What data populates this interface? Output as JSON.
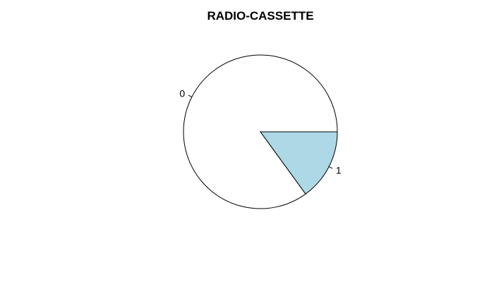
{
  "chart_data": {
    "type": "pie",
    "title": "RADIO-CASSETTE",
    "categories": [
      "0",
      "1"
    ],
    "values": [
      0.85,
      0.15
    ],
    "colors": [
      "#FFFFFF",
      "#ADD8E6"
    ],
    "start_angle_deg": 0,
    "direction": "counterclockwise"
  }
}
